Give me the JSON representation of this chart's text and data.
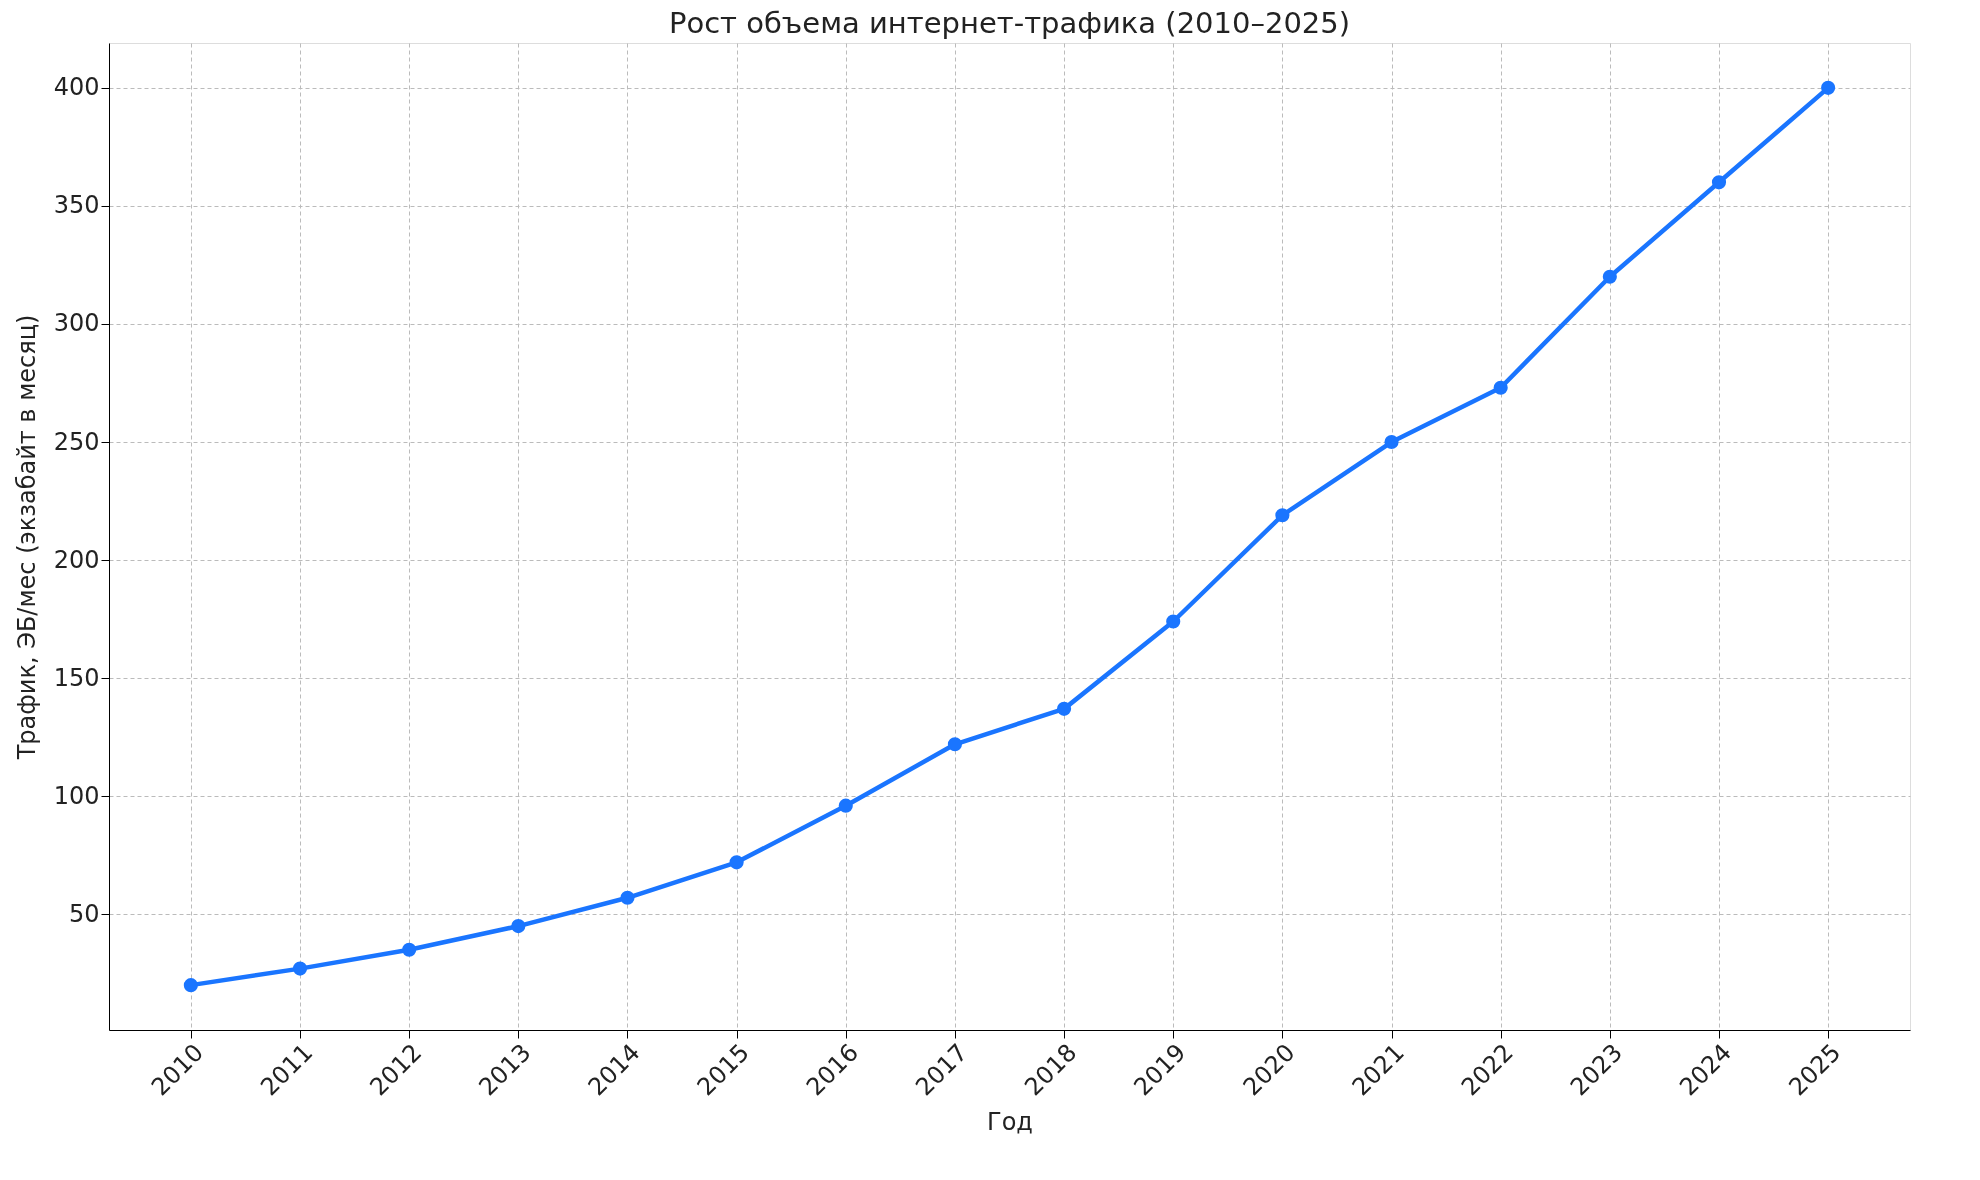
{
  "chart_data": {
    "type": "line",
    "title": "Рост объема интернет-трафика (2010–2025)",
    "xlabel": "Год",
    "ylabel": "Трафик, ЭБ/мес (экзабайт в месяц)",
    "x": [
      2010,
      2011,
      2012,
      2013,
      2014,
      2015,
      2016,
      2017,
      2018,
      2019,
      2020,
      2021,
      2022,
      2023,
      2024,
      2025
    ],
    "series": [
      {
        "color": "#1a75ff",
        "values": [
          20,
          27,
          35,
          45,
          57,
          72,
          96,
          122,
          137,
          174,
          219,
          250,
          273,
          320,
          360,
          400
        ]
      }
    ],
    "xlim": [
      2009.25,
      2025.75
    ],
    "xticks": [
      2010,
      2011,
      2012,
      2013,
      2014,
      2015,
      2016,
      2017,
      2018,
      2019,
      2020,
      2021,
      2022,
      2023,
      2024,
      2025
    ],
    "ylim": [
      1,
      419
    ],
    "yticks": [
      50,
      100,
      150,
      200,
      250,
      300,
      350,
      400
    ],
    "grid": true,
    "marker": "circle",
    "line_style": "solid"
  }
}
